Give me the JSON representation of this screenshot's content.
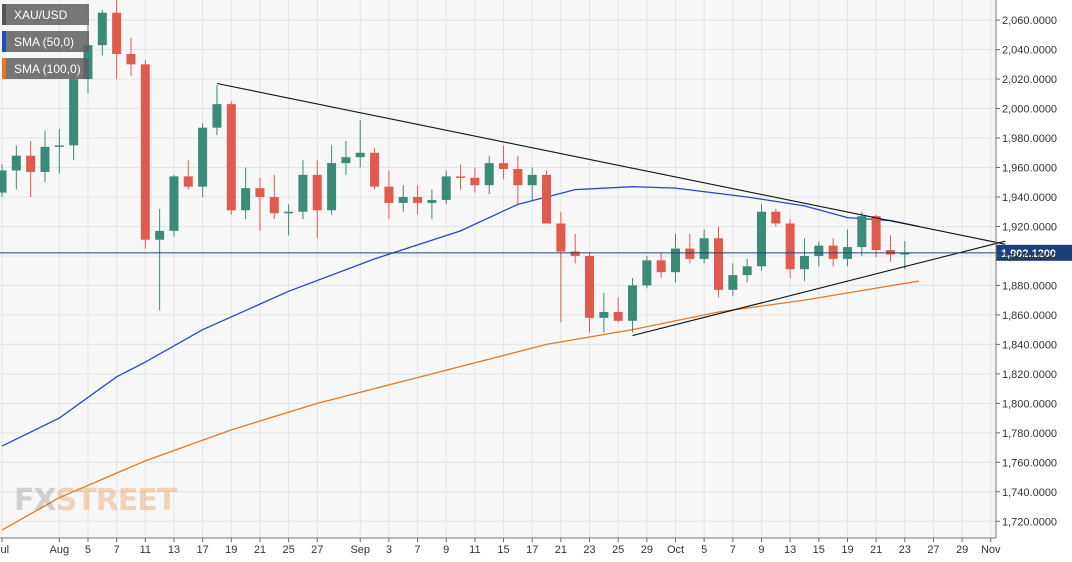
{
  "chart_data": {
    "type": "candlestick",
    "instrument": "XAU/USD",
    "colors": {
      "up": "#3c8a78",
      "down": "#e05a4d",
      "sma50": "#2647c7",
      "sma100": "#e67820",
      "trendline": "#111111",
      "price_line": "#1c3f7a",
      "price_box": "#1c3f7a",
      "grid": "#e4e4e4",
      "plot_bg": "#f7f7f7"
    },
    "legend": [
      {
        "label": "XAU/USD",
        "color": "#555555"
      },
      {
        "label": "SMA (50,0)",
        "color": "#2647c7"
      },
      {
        "label": "SMA (100,0)",
        "color": "#e67820"
      }
    ],
    "y_axis": {
      "min": 1710,
      "max": 2075,
      "ticks": [
        1720,
        1740,
        1760,
        1780,
        1800,
        1820,
        1840,
        1860,
        1880,
        1900,
        1920,
        1940,
        1960,
        1980,
        2000,
        2020,
        2040,
        2060
      ],
      "tick_labels": [
        "1,720.0000",
        "1,740.0000",
        "1,760.0000",
        "1,780.0000",
        "1,800.0000",
        "1,820.0000",
        "1,840.0000",
        "1,860.0000",
        "1,880.0000",
        "1,900.0000",
        "1,920.0000",
        "1,940.0000",
        "1,960.0000",
        "1,980.0000",
        "2,000.0000",
        "2,020.0000",
        "2,040.0000",
        "2,060.0000"
      ]
    },
    "x_axis": {
      "labels": [
        {
          "t": 0,
          "text": "Jul"
        },
        {
          "t": 4,
          "text": "Aug"
        },
        {
          "t": 6,
          "text": "5"
        },
        {
          "t": 8,
          "text": "7"
        },
        {
          "t": 10,
          "text": "11"
        },
        {
          "t": 12,
          "text": "13"
        },
        {
          "t": 14,
          "text": "17"
        },
        {
          "t": 16,
          "text": "19"
        },
        {
          "t": 18,
          "text": "21"
        },
        {
          "t": 20,
          "text": "25"
        },
        {
          "t": 22,
          "text": "27"
        },
        {
          "t": 25,
          "text": "Sep"
        },
        {
          "t": 27,
          "text": "3"
        },
        {
          "t": 29,
          "text": "7"
        },
        {
          "t": 31,
          "text": "9"
        },
        {
          "t": 33,
          "text": "11"
        },
        {
          "t": 35,
          "text": "15"
        },
        {
          "t": 37,
          "text": "17"
        },
        {
          "t": 39,
          "text": "21"
        },
        {
          "t": 41,
          "text": "23"
        },
        {
          "t": 43,
          "text": "25"
        },
        {
          "t": 45,
          "text": "29"
        },
        {
          "t": 47,
          "text": "Oct"
        },
        {
          "t": 49,
          "text": "5"
        },
        {
          "t": 51,
          "text": "7"
        },
        {
          "t": 53,
          "text": "9"
        },
        {
          "t": 55,
          "text": "13"
        },
        {
          "t": 57,
          "text": "15"
        },
        {
          "t": 59,
          "text": "19"
        },
        {
          "t": 61,
          "text": "21"
        },
        {
          "t": 63,
          "text": "23"
        },
        {
          "t": 65,
          "text": "27"
        },
        {
          "t": 67,
          "text": "29"
        },
        {
          "t": 69,
          "text": "Nov"
        }
      ]
    },
    "candles": [
      {
        "t": 0,
        "o": 1943,
        "h": 1962,
        "l": 1940,
        "c": 1958
      },
      {
        "t": 1,
        "o": 1958,
        "h": 1975,
        "l": 1945,
        "c": 1968
      },
      {
        "t": 2,
        "o": 1968,
        "h": 1978,
        "l": 1940,
        "c": 1957
      },
      {
        "t": 3,
        "o": 1957,
        "h": 1985,
        "l": 1950,
        "c": 1974
      },
      {
        "t": 4,
        "o": 1974,
        "h": 1986,
        "l": 1956,
        "c": 1975
      },
      {
        "t": 5,
        "o": 1975,
        "h": 2025,
        "l": 1965,
        "c": 2020
      },
      {
        "t": 6,
        "o": 2020,
        "h": 2057,
        "l": 2010,
        "c": 2043
      },
      {
        "t": 7,
        "o": 2043,
        "h": 2067,
        "l": 2036,
        "c": 2065
      },
      {
        "t": 8,
        "o": 2065,
        "h": 2075,
        "l": 2020,
        "c": 2037
      },
      {
        "t": 9,
        "o": 2037,
        "h": 2048,
        "l": 2022,
        "c": 2030
      },
      {
        "t": 10,
        "o": 2030,
        "h": 2033,
        "l": 1905,
        "c": 1911
      },
      {
        "t": 11,
        "o": 1911,
        "h": 1932,
        "l": 1863,
        "c": 1917
      },
      {
        "t": 12,
        "o": 1917,
        "h": 1955,
        "l": 1913,
        "c": 1954
      },
      {
        "t": 13,
        "o": 1954,
        "h": 1965,
        "l": 1945,
        "c": 1947
      },
      {
        "t": 14,
        "o": 1947,
        "h": 1990,
        "l": 1940,
        "c": 1987
      },
      {
        "t": 15,
        "o": 1987,
        "h": 2016,
        "l": 1982,
        "c": 2003
      },
      {
        "t": 16,
        "o": 2003,
        "h": 2005,
        "l": 1928,
        "c": 1931
      },
      {
        "t": 17,
        "o": 1931,
        "h": 1960,
        "l": 1925,
        "c": 1946
      },
      {
        "t": 18,
        "o": 1946,
        "h": 1953,
        "l": 1917,
        "c": 1940
      },
      {
        "t": 19,
        "o": 1940,
        "h": 1955,
        "l": 1925,
        "c": 1929
      },
      {
        "t": 20,
        "o": 1929,
        "h": 1935,
        "l": 1914,
        "c": 1930
      },
      {
        "t": 21,
        "o": 1930,
        "h": 1965,
        "l": 1925,
        "c": 1955
      },
      {
        "t": 22,
        "o": 1955,
        "h": 1965,
        "l": 1912,
        "c": 1931
      },
      {
        "t": 23,
        "o": 1931,
        "h": 1975,
        "l": 1928,
        "c": 1963
      },
      {
        "t": 24,
        "o": 1963,
        "h": 1978,
        "l": 1955,
        "c": 1967
      },
      {
        "t": 25,
        "o": 1967,
        "h": 1992,
        "l": 1960,
        "c": 1970
      },
      {
        "t": 26,
        "o": 1970,
        "h": 1973,
        "l": 1945,
        "c": 1947
      },
      {
        "t": 27,
        "o": 1947,
        "h": 1958,
        "l": 1925,
        "c": 1936
      },
      {
        "t": 28,
        "o": 1936,
        "h": 1948,
        "l": 1930,
        "c": 1940
      },
      {
        "t": 29,
        "o": 1940,
        "h": 1948,
        "l": 1928,
        "c": 1936
      },
      {
        "t": 30,
        "o": 1936,
        "h": 1945,
        "l": 1925,
        "c": 1938
      },
      {
        "t": 31,
        "o": 1938,
        "h": 1958,
        "l": 1935,
        "c": 1954
      },
      {
        "t": 32,
        "o": 1954,
        "h": 1962,
        "l": 1945,
        "c": 1953
      },
      {
        "t": 33,
        "o": 1953,
        "h": 1960,
        "l": 1943,
        "c": 1948
      },
      {
        "t": 34,
        "o": 1948,
        "h": 1968,
        "l": 1942,
        "c": 1963
      },
      {
        "t": 35,
        "o": 1963,
        "h": 1975,
        "l": 1952,
        "c": 1959
      },
      {
        "t": 36,
        "o": 1959,
        "h": 1968,
        "l": 1935,
        "c": 1948
      },
      {
        "t": 37,
        "o": 1948,
        "h": 1960,
        "l": 1938,
        "c": 1955
      },
      {
        "t": 38,
        "o": 1955,
        "h": 1958,
        "l": 1925,
        "c": 1922
      },
      {
        "t": 39,
        "o": 1922,
        "h": 1930,
        "l": 1855,
        "c": 1903
      },
      {
        "t": 40,
        "o": 1903,
        "h": 1915,
        "l": 1895,
        "c": 1900
      },
      {
        "t": 41,
        "o": 1900,
        "h": 1902,
        "l": 1848,
        "c": 1858
      },
      {
        "t": 42,
        "o": 1858,
        "h": 1875,
        "l": 1848,
        "c": 1862
      },
      {
        "t": 43,
        "o": 1862,
        "h": 1872,
        "l": 1855,
        "c": 1856
      },
      {
        "t": 44,
        "o": 1856,
        "h": 1885,
        "l": 1848,
        "c": 1880
      },
      {
        "t": 45,
        "o": 1880,
        "h": 1900,
        "l": 1878,
        "c": 1897
      },
      {
        "t": 46,
        "o": 1897,
        "h": 1902,
        "l": 1885,
        "c": 1889
      },
      {
        "t": 47,
        "o": 1889,
        "h": 1915,
        "l": 1882,
        "c": 1905
      },
      {
        "t": 48,
        "o": 1905,
        "h": 1915,
        "l": 1895,
        "c": 1898
      },
      {
        "t": 49,
        "o": 1898,
        "h": 1918,
        "l": 1895,
        "c": 1912
      },
      {
        "t": 50,
        "o": 1912,
        "h": 1920,
        "l": 1872,
        "c": 1877
      },
      {
        "t": 51,
        "o": 1877,
        "h": 1895,
        "l": 1873,
        "c": 1887
      },
      {
        "t": 52,
        "o": 1887,
        "h": 1898,
        "l": 1882,
        "c": 1893
      },
      {
        "t": 53,
        "o": 1893,
        "h": 1935,
        "l": 1890,
        "c": 1930
      },
      {
        "t": 54,
        "o": 1930,
        "h": 1932,
        "l": 1920,
        "c": 1922
      },
      {
        "t": 55,
        "o": 1922,
        "h": 1925,
        "l": 1885,
        "c": 1891
      },
      {
        "t": 56,
        "o": 1891,
        "h": 1912,
        "l": 1883,
        "c": 1900
      },
      {
        "t": 57,
        "o": 1900,
        "h": 1910,
        "l": 1893,
        "c": 1907
      },
      {
        "t": 58,
        "o": 1907,
        "h": 1912,
        "l": 1893,
        "c": 1898
      },
      {
        "t": 59,
        "o": 1898,
        "h": 1918,
        "l": 1893,
        "c": 1906
      },
      {
        "t": 60,
        "o": 1906,
        "h": 1930,
        "l": 1900,
        "c": 1927
      },
      {
        "t": 61,
        "o": 1927,
        "h": 1928,
        "l": 1899,
        "c": 1904
      },
      {
        "t": 62,
        "o": 1904,
        "h": 1914,
        "l": 1896,
        "c": 1901
      },
      {
        "t": 63,
        "o": 1901,
        "h": 1910,
        "l": 1891,
        "c": 1902
      }
    ],
    "sma50": [
      {
        "t": 0,
        "v": 1771
      },
      {
        "t": 4,
        "v": 1790
      },
      {
        "t": 8,
        "v": 1818
      },
      {
        "t": 10,
        "v": 1828
      },
      {
        "t": 14,
        "v": 1850
      },
      {
        "t": 20,
        "v": 1876
      },
      {
        "t": 26,
        "v": 1898
      },
      {
        "t": 32,
        "v": 1917
      },
      {
        "t": 36,
        "v": 1935
      },
      {
        "t": 40,
        "v": 1945
      },
      {
        "t": 44,
        "v": 1947
      },
      {
        "t": 47,
        "v": 1946
      },
      {
        "t": 52,
        "v": 1940
      },
      {
        "t": 56,
        "v": 1934
      },
      {
        "t": 59,
        "v": 1926
      },
      {
        "t": 62,
        "v": 1924
      },
      {
        "t": 64,
        "v": 1920
      }
    ],
    "sma100": [
      {
        "t": 0,
        "v": 1714
      },
      {
        "t": 4,
        "v": 1736
      },
      {
        "t": 10,
        "v": 1761
      },
      {
        "t": 16,
        "v": 1782
      },
      {
        "t": 22,
        "v": 1800
      },
      {
        "t": 30,
        "v": 1820
      },
      {
        "t": 38,
        "v": 1840
      },
      {
        "t": 44,
        "v": 1850
      },
      {
        "t": 50,
        "v": 1862
      },
      {
        "t": 56,
        "v": 1870
      },
      {
        "t": 64,
        "v": 1883
      }
    ],
    "trendlines": [
      {
        "name": "upper",
        "from": {
          "t": 15,
          "v": 2017
        },
        "to": {
          "t": 70,
          "v": 1908
        }
      },
      {
        "name": "lower",
        "from": {
          "t": 44,
          "v": 1846
        },
        "to": {
          "t": 70,
          "v": 1910
        }
      }
    ],
    "last_price": {
      "value": 1902.12,
      "label": "1,902.1200"
    },
    "watermark": {
      "part1": "FX",
      "part2": "STREET"
    }
  }
}
